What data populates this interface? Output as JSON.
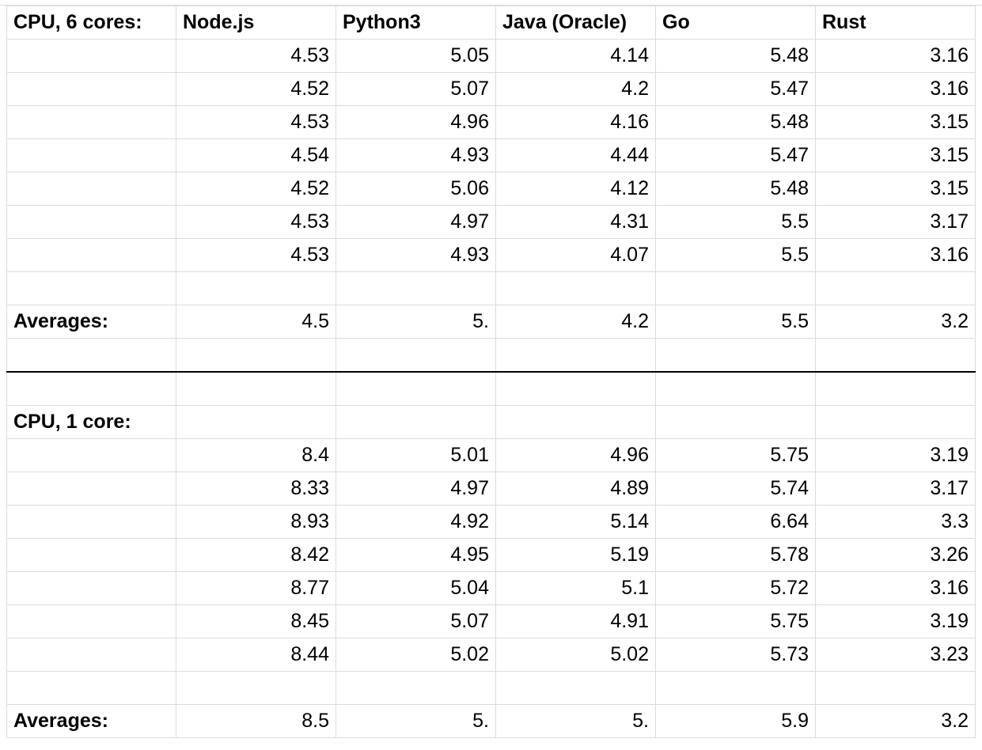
{
  "sheet": {
    "columns": [
      "CPU, 6 cores:",
      "Node.js",
      "Python3",
      "Java (Oracle)",
      "Go",
      "Rust"
    ],
    "section1": {
      "rows": [
        [
          "",
          "4.53",
          "5.05",
          "4.14",
          "5.48",
          "3.16"
        ],
        [
          "",
          "4.52",
          "5.07",
          "4.2",
          "5.47",
          "3.16"
        ],
        [
          "",
          "4.53",
          "4.96",
          "4.16",
          "5.48",
          "3.15"
        ],
        [
          "",
          "4.54",
          "4.93",
          "4.44",
          "5.47",
          "3.15"
        ],
        [
          "",
          "4.52",
          "5.06",
          "4.12",
          "5.48",
          "3.15"
        ],
        [
          "",
          "4.53",
          "4.97",
          "4.31",
          "5.5",
          "3.17"
        ],
        [
          "",
          "4.53",
          "4.93",
          "4.07",
          "5.5",
          "3.16"
        ]
      ],
      "averages": [
        "Averages:",
        "4.5",
        "5.",
        "4.2",
        "5.5",
        "3.2"
      ]
    },
    "section2": {
      "title": "CPU, 1 core:",
      "rows": [
        [
          "",
          "8.4",
          "5.01",
          "4.96",
          "5.75",
          "3.19"
        ],
        [
          "",
          "8.33",
          "4.97",
          "4.89",
          "5.74",
          "3.17"
        ],
        [
          "",
          "8.93",
          "4.92",
          "5.14",
          "6.64",
          "3.3"
        ],
        [
          "",
          "8.42",
          "4.95",
          "5.19",
          "5.78",
          "3.26"
        ],
        [
          "",
          "8.77",
          "5.04",
          "5.1",
          "5.72",
          "3.16"
        ],
        [
          "",
          "8.45",
          "5.07",
          "4.91",
          "5.75",
          "3.19"
        ],
        [
          "",
          "8.44",
          "5.02",
          "5.02",
          "5.73",
          "3.23"
        ]
      ],
      "averages": [
        "Averages:",
        "8.5",
        "5.",
        "5.",
        "5.9",
        "3.2"
      ]
    }
  }
}
